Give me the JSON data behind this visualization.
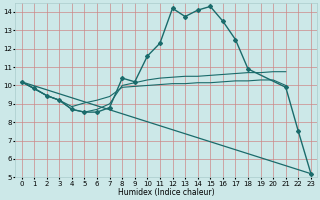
{
  "xlabel": "Humidex (Indice chaleur)",
  "bg_color": "#cce8e8",
  "grid_color": "#aacccc",
  "line_color": "#1a6b6b",
  "xlim": [
    -0.5,
    23.5
  ],
  "ylim": [
    5,
    14.5
  ],
  "xticks": [
    0,
    1,
    2,
    3,
    4,
    5,
    6,
    7,
    8,
    9,
    10,
    11,
    12,
    13,
    14,
    15,
    16,
    17,
    18,
    19,
    20,
    21,
    22,
    23
  ],
  "yticks": [
    5,
    6,
    7,
    8,
    9,
    10,
    11,
    12,
    13,
    14
  ],
  "curve_main": {
    "x": [
      0,
      1,
      2,
      3,
      4,
      5,
      6,
      7,
      8,
      9,
      10,
      11,
      12,
      13,
      14,
      15,
      16,
      17,
      18,
      21,
      22,
      23
    ],
    "y": [
      10.2,
      9.85,
      9.45,
      9.2,
      8.7,
      8.55,
      8.55,
      8.8,
      10.4,
      10.2,
      11.6,
      12.3,
      14.2,
      13.75,
      14.1,
      14.3,
      13.5,
      12.5,
      10.9,
      9.9,
      7.5,
      5.2
    ]
  },
  "line_diagonal": {
    "x": [
      0,
      23
    ],
    "y": [
      10.2,
      5.2
    ]
  },
  "line_flat1": {
    "x": [
      0,
      2,
      3,
      4,
      5,
      6,
      7,
      8,
      9,
      10,
      11,
      12,
      13,
      14,
      15,
      16,
      17,
      18,
      19,
      20,
      21
    ],
    "y": [
      10.2,
      9.45,
      9.2,
      8.7,
      8.55,
      8.7,
      9.0,
      10.0,
      10.15,
      10.3,
      10.4,
      10.45,
      10.5,
      10.5,
      10.55,
      10.6,
      10.65,
      10.7,
      10.7,
      10.75,
      10.75
    ]
  },
  "line_flat2": {
    "x": [
      0,
      2,
      3,
      4,
      5,
      6,
      7,
      8,
      9,
      10,
      11,
      12,
      13,
      14,
      15,
      16,
      17,
      18,
      19,
      20,
      21
    ],
    "y": [
      10.2,
      9.45,
      9.2,
      8.85,
      9.05,
      9.2,
      9.4,
      9.9,
      9.95,
      10.0,
      10.05,
      10.1,
      10.1,
      10.15,
      10.15,
      10.2,
      10.25,
      10.25,
      10.3,
      10.3,
      10.0
    ]
  }
}
